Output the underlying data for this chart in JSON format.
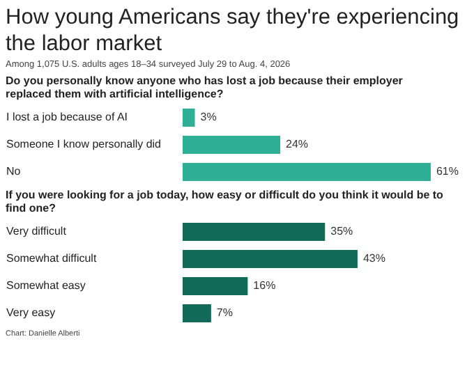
{
  "chart_data": [
    {
      "type": "other",
      "title": "How young Americans say they're experiencing the labor market",
      "subtitle": "Among 1,075 U.S. adults ages 18–34 surveyed July 29 to Aug. 4, 2026"
    },
    {
      "type": "bar",
      "orientation": "horizontal",
      "title": "Do you personally know anyone who has lost a job because their employer replaced them with artificial intelligence?",
      "categories": [
        "I lost a job because of AI",
        "Someone I know personally did",
        "No"
      ],
      "values": [
        3,
        24,
        61
      ],
      "value_labels": [
        "3%",
        "24%",
        "61%"
      ],
      "color": "#2fb096"
    },
    {
      "type": "bar",
      "orientation": "horizontal",
      "title": "If you were looking for a job today, how easy or difficult do you think it would be to find one?",
      "categories": [
        "Very difficult",
        "Somewhat difficult",
        "Somewhat easy",
        "Very easy"
      ],
      "values": [
        35,
        43,
        16,
        7
      ],
      "value_labels": [
        "35%",
        "43%",
        "16%",
        "7%"
      ],
      "color": "#116b58",
      "annotations": [
        "Chart: Danielle Alberti"
      ]
    }
  ]
}
